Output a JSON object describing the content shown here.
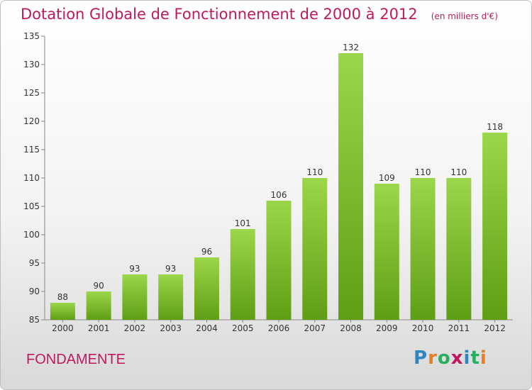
{
  "title": "Dotation Globale de Fonctionnement de 2000 à 2012",
  "subtitle": "(en milliers d'€)",
  "commune": "FONDAMENTE",
  "logo": {
    "text": "Proxiti",
    "colors": [
      "#2e86c1",
      "#e67e22",
      "#27ae60",
      "#c0185e",
      "#2e86c1",
      "#27ae60",
      "#e67e22"
    ]
  },
  "colors": {
    "bar_top": "#9cd64a",
    "bar_bottom": "#5f9e14",
    "title": "#c0185e"
  },
  "chart_data": {
    "type": "bar",
    "title": "Dotation Globale de Fonctionnement de 2000 à 2012",
    "subtitle": "(en milliers d'€)",
    "xlabel": "",
    "ylabel": "",
    "categories": [
      "2000",
      "2001",
      "2002",
      "2003",
      "2004",
      "2005",
      "2006",
      "2007",
      "2008",
      "2009",
      "2010",
      "2011",
      "2012"
    ],
    "values": [
      88,
      90,
      93,
      93,
      96,
      101,
      106,
      110,
      132,
      109,
      110,
      110,
      118
    ],
    "ylim": [
      85,
      135
    ],
    "yticks": [
      85,
      90,
      95,
      100,
      105,
      110,
      115,
      120,
      125,
      130,
      135
    ],
    "grid": false,
    "legend": "none"
  }
}
